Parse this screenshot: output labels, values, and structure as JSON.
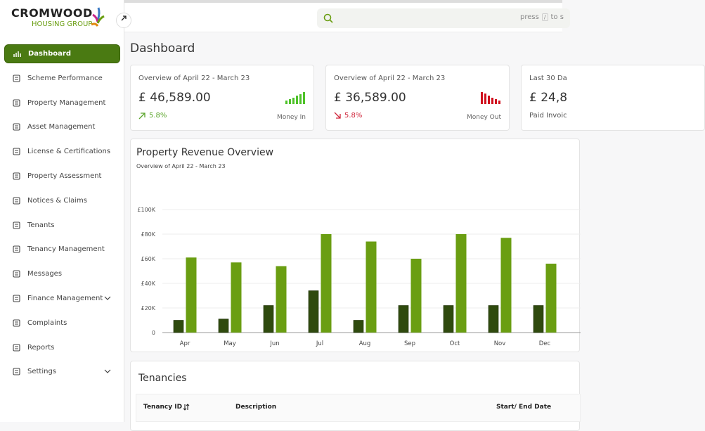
{
  "logo": {
    "name": "CROMWOOD",
    "tagline": "HOUSING GROUP"
  },
  "search": {
    "hint": "press",
    "key": "/",
    "hint_end": "to s"
  },
  "sidebar": {
    "nav": [
      "Dashboard",
      "Scheme Performance",
      "Property Management",
      "Asset Management",
      "License & Certifications",
      "Property Assessment",
      "Notices & Claims",
      "Tenants",
      "Tenancy Management",
      "Messages",
      "Finance Management",
      "Complaints",
      "Reports",
      "Settings"
    ]
  },
  "page": {
    "title": "Dashboard"
  },
  "cards": [
    {
      "period": "Overview of April 22 - March 23",
      "amount": "£ 46,589.00",
      "change": "5.8%",
      "label": "Money In"
    },
    {
      "period": "Overview of April 22 - March 23",
      "amount": "£ 36,589.00",
      "change": "5.8%",
      "label": "Money Out"
    },
    {
      "period": "Last 30 Da",
      "amount": "£ 24,8",
      "label": "Paid Invoic"
    }
  ],
  "chart_data": {
    "type": "bar",
    "title": "Property Revenue Overview",
    "subtitle": "Overview of April 22 - March 23",
    "categories": [
      "Apr",
      "May",
      "Jun",
      "Jul",
      "Aug",
      "Sep",
      "Oct",
      "Nov",
      "Dec"
    ],
    "series": [
      {
        "color": "#2f4a0e",
        "values": [
          10000,
          11000,
          22000,
          34000,
          10000,
          22000,
          22000,
          22000,
          22000
        ]
      },
      {
        "color": "#6a9e12",
        "values": [
          61000,
          57000,
          54000,
          80000,
          74000,
          60000,
          80000,
          77000,
          56000
        ]
      }
    ],
    "ylim": [
      0,
      100000
    ],
    "yticks": [
      0,
      {
        "value": 20000,
        "label": "£20K"
      },
      {
        "value": 40000,
        "label": "£40K"
      },
      {
        "value": 60000,
        "label": "£60K"
      },
      {
        "value": 80000,
        "label": "£80K"
      },
      {
        "value": 100000,
        "label": "£100K"
      }
    ],
    "grid": true
  },
  "table": {
    "title": "Tenancies",
    "headers": [
      "Tenancy ID",
      "Description",
      "Start/ End Date"
    ]
  }
}
